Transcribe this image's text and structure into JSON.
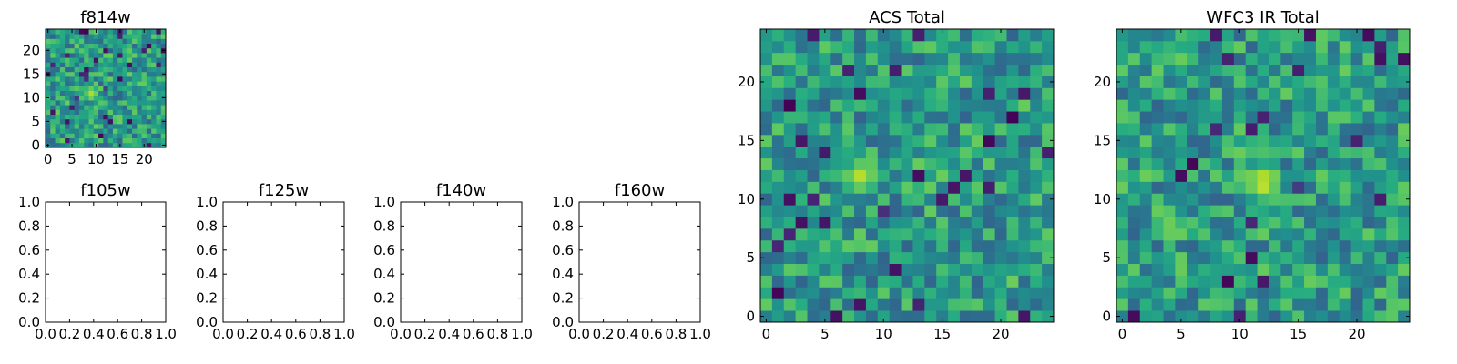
{
  "chart_data": [
    {
      "type": "heatmap",
      "title": "f814w",
      "xticks": [
        "0",
        "5",
        "10",
        "15",
        "20"
      ],
      "yticks": [
        "0",
        "5",
        "10",
        "15",
        "20"
      ],
      "xlim": [
        -0.5,
        24.5
      ],
      "ylim": [
        -0.5,
        24.5
      ],
      "grid_size": [
        25,
        25
      ],
      "colormap": "viridis",
      "hot_region": {
        "cx": 9,
        "cy": 11,
        "value": 0.9
      },
      "seed": 11
    },
    {
      "type": "heatmap",
      "title": "f105w",
      "xticks": [
        "0.0",
        "0.2",
        "0.4",
        "0.6",
        "0.8",
        "1.0"
      ],
      "yticks": [
        "0.0",
        "0.2",
        "0.4",
        "0.6",
        "0.8",
        "1.0"
      ],
      "xlim": [
        0,
        1
      ],
      "ylim": [
        0,
        1
      ],
      "empty": true
    },
    {
      "type": "heatmap",
      "title": "f125w",
      "xticks": [
        "0.0",
        "0.2",
        "0.4",
        "0.6",
        "0.8",
        "1.0"
      ],
      "yticks": [
        "0.0",
        "0.2",
        "0.4",
        "0.6",
        "0.8",
        "1.0"
      ],
      "xlim": [
        0,
        1
      ],
      "ylim": [
        0,
        1
      ],
      "empty": true
    },
    {
      "type": "heatmap",
      "title": "f140w",
      "xticks": [
        "0.0",
        "0.2",
        "0.4",
        "0.6",
        "0.8",
        "1.0"
      ],
      "yticks": [
        "0.0",
        "0.2",
        "0.4",
        "0.6",
        "0.8",
        "1.0"
      ],
      "xlim": [
        0,
        1
      ],
      "ylim": [
        0,
        1
      ],
      "empty": true
    },
    {
      "type": "heatmap",
      "title": "f160w",
      "xticks": [
        "0.0",
        "0.2",
        "0.4",
        "0.6",
        "0.8",
        "1.0"
      ],
      "yticks": [
        "0.0",
        "0.2",
        "0.4",
        "0.6",
        "0.8",
        "1.0"
      ],
      "xlim": [
        0,
        1
      ],
      "ylim": [
        0,
        1
      ],
      "empty": true
    },
    {
      "type": "heatmap",
      "title": "ACS Total",
      "xticks": [
        "0",
        "5",
        "10",
        "15",
        "20"
      ],
      "yticks": [
        "0",
        "5",
        "10",
        "15",
        "20"
      ],
      "xlim": [
        -0.5,
        24.5
      ],
      "ylim": [
        -0.5,
        24.5
      ],
      "grid_size": [
        25,
        25
      ],
      "colormap": "viridis",
      "hot_region": {
        "cx": 8,
        "cy": 12,
        "value": 0.88
      },
      "seed": 23
    },
    {
      "type": "heatmap",
      "title": "WFC3 IR Total",
      "xticks": [
        "0",
        "5",
        "10",
        "15",
        "20"
      ],
      "yticks": [
        "0",
        "5",
        "10",
        "15",
        "20"
      ],
      "xlim": [
        -0.5,
        24.5
      ],
      "ylim": [
        -0.5,
        24.5
      ],
      "grid_size": [
        25,
        25
      ],
      "colormap": "viridis",
      "hot_region": {
        "cx": 12,
        "cy": 11.5,
        "value": 0.95
      },
      "seed": 37
    }
  ]
}
